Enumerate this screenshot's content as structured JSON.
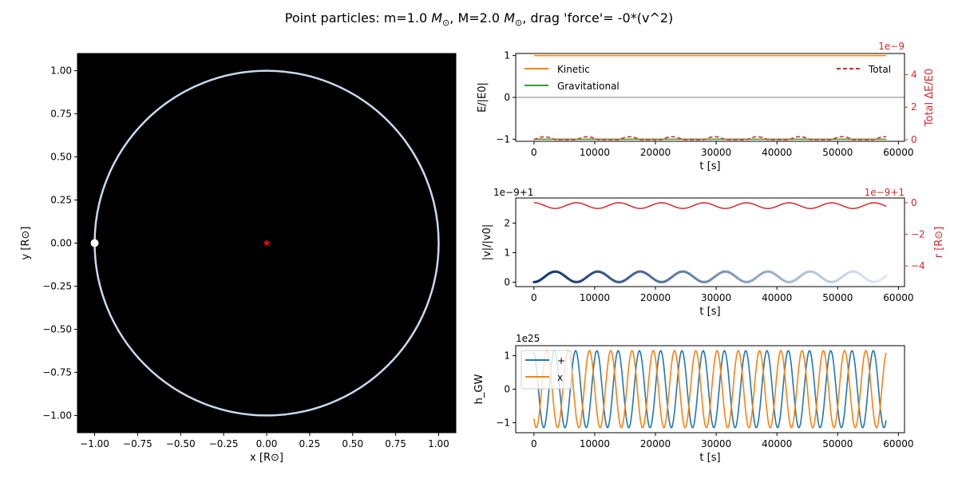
{
  "figure": {
    "title_prefix": "Point particles: m=1.0 ",
    "title_mid1": ", M=2.0 ",
    "title_suffix": ", drag 'force'= -0*(v^2)",
    "msun_symbol": "M",
    "sun_subscript": "⊙"
  },
  "chart_data": [
    {
      "id": "orbit",
      "type": "scatter",
      "xlabel": "x [R⊙]",
      "ylabel": "y [R⊙]",
      "xlim": [
        -1.1,
        1.1
      ],
      "ylim": [
        -1.1,
        1.1
      ],
      "xticks": [
        "−1.00",
        "−0.75",
        "−0.50",
        "−0.25",
        "0.00",
        "0.25",
        "0.50",
        "0.75",
        "1.00"
      ],
      "yticks": [
        "−1.00",
        "−0.75",
        "−0.50",
        "−0.25",
        "0.00",
        "0.25",
        "0.50",
        "0.75",
        "1.00"
      ],
      "background": "#000000",
      "orbit_radius": 1.0,
      "orbit_color": "#c6dbef",
      "particle": {
        "x": -1.0,
        "y": 0.0,
        "color": "#ffffff"
      },
      "central_mass": {
        "x": 0.0,
        "y": 0.0,
        "marker": "star",
        "color": "#ff0000"
      }
    },
    {
      "id": "energy",
      "type": "line",
      "xlabel": "t [s]",
      "ylabel": "E/|E0|",
      "twin_ylabel": "Total ΔE/E0",
      "offset_text": "1e−9",
      "xlim": [
        -3000,
        61000
      ],
      "ylim": [
        -1.05,
        1.05
      ],
      "twin_ylim": [
        -0.1,
        5.3
      ],
      "xticks": [
        0,
        10000,
        20000,
        30000,
        40000,
        50000,
        60000
      ],
      "yticks": [
        -1,
        0,
        1
      ],
      "twin_yticks": [
        0,
        2,
        4
      ],
      "t_max": 58000,
      "series": [
        {
          "name": "Kinetic",
          "color": "#ff7f0e",
          "value": 1.0
        },
        {
          "name": "Gravitational",
          "color": "#2ca02c",
          "value": -1.0
        },
        {
          "name": "Total",
          "color": "#d62728",
          "dashed": true,
          "slope_per_s": 8.6e-05,
          "wiggle": 0.18,
          "period_s": 7000
        }
      ]
    },
    {
      "id": "velocity",
      "type": "line",
      "xlabel": "t [s]",
      "ylabel": "|v|/|v0|",
      "offset_text": "1e−9+1",
      "twin_ylabel": "r [R⊙]",
      "twin_offset_text": "1e−9+1",
      "xlim": [
        -3000,
        61000
      ],
      "ylim": [
        -0.15,
        2.85
      ],
      "twin_ylim": [
        -5.3,
        0.3
      ],
      "xticks": [
        0,
        10000,
        20000,
        30000,
        40000,
        50000,
        60000
      ],
      "yticks": [
        0,
        1,
        2
      ],
      "twin_yticks": [
        0,
        -2,
        -4
      ],
      "t_max": 58000,
      "series": [
        {
          "name": "|v|/|v0|",
          "colormap": "Blues",
          "slope_per_s": 4.5e-05,
          "wiggle": 0.18,
          "period_s": 7000
        },
        {
          "name": "r",
          "color": "#d62728",
          "slope_per_s": -8.6e-05,
          "wiggle": 0.18,
          "period_s": 7000
        }
      ]
    },
    {
      "id": "gw",
      "type": "line",
      "xlabel": "t [s]",
      "ylabel": "h_GW",
      "offset_text": "1e25",
      "xlim": [
        -3000,
        61000
      ],
      "ylim": [
        -1.3,
        1.3
      ],
      "xticks": [
        0,
        10000,
        20000,
        30000,
        40000,
        50000,
        60000
      ],
      "yticks": [
        -1,
        0,
        1
      ],
      "t_max": 58000,
      "period_s": 3500,
      "amplitude": 1.15,
      "series": [
        {
          "name": "+",
          "color": "#1f77b4",
          "phase": "cos"
        },
        {
          "name": "x",
          "color": "#ff7f0e",
          "phase": "sin"
        }
      ]
    }
  ]
}
